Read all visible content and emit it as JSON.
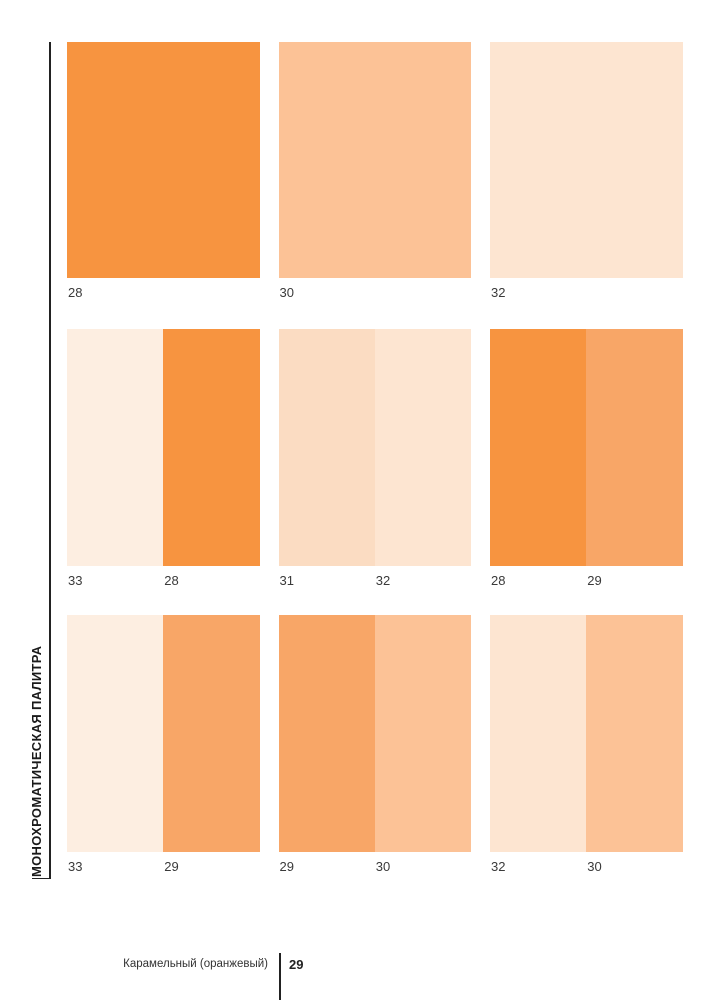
{
  "sidebar": {
    "label": "МОНОХРОМАТИЧЕСКАЯ ПАЛИТРА"
  },
  "palette_colors": {
    "28": "#F79440",
    "29": "#F8A667",
    "30": "#FCC296",
    "31": "#FBDCC2",
    "32": "#FDE5D1",
    "33": "#FDEEE1"
  },
  "palette": {
    "rows": [
      {
        "cells": [
          {
            "swatches": [
              {
                "label": "28",
                "color": "#F79440"
              }
            ]
          },
          {
            "swatches": [
              {
                "label": "30",
                "color": "#FCC296"
              }
            ]
          },
          {
            "swatches": [
              {
                "label": "32",
                "color": "#FDE5D1"
              }
            ]
          }
        ]
      },
      {
        "cells": [
          {
            "swatches": [
              {
                "label": "33",
                "color": "#FDEEE1"
              },
              {
                "label": "28",
                "color": "#F79440"
              }
            ]
          },
          {
            "swatches": [
              {
                "label": "31",
                "color": "#FBDCC2"
              },
              {
                "label": "32",
                "color": "#FDE5D1"
              }
            ]
          },
          {
            "swatches": [
              {
                "label": "28",
                "color": "#F79440"
              },
              {
                "label": "29",
                "color": "#F8A667"
              }
            ]
          }
        ]
      },
      {
        "cells": [
          {
            "swatches": [
              {
                "label": "33",
                "color": "#FDEEE1"
              },
              {
                "label": "29",
                "color": "#F8A667"
              }
            ]
          },
          {
            "swatches": [
              {
                "label": "29",
                "color": "#F8A667"
              },
              {
                "label": "30",
                "color": "#FCC296"
              }
            ]
          },
          {
            "swatches": [
              {
                "label": "32",
                "color": "#FDE5D1"
              },
              {
                "label": "30",
                "color": "#FCC296"
              }
            ]
          }
        ]
      }
    ]
  },
  "footer": {
    "chapter": "Карамельный (оранжевый)",
    "page_number": "29"
  }
}
